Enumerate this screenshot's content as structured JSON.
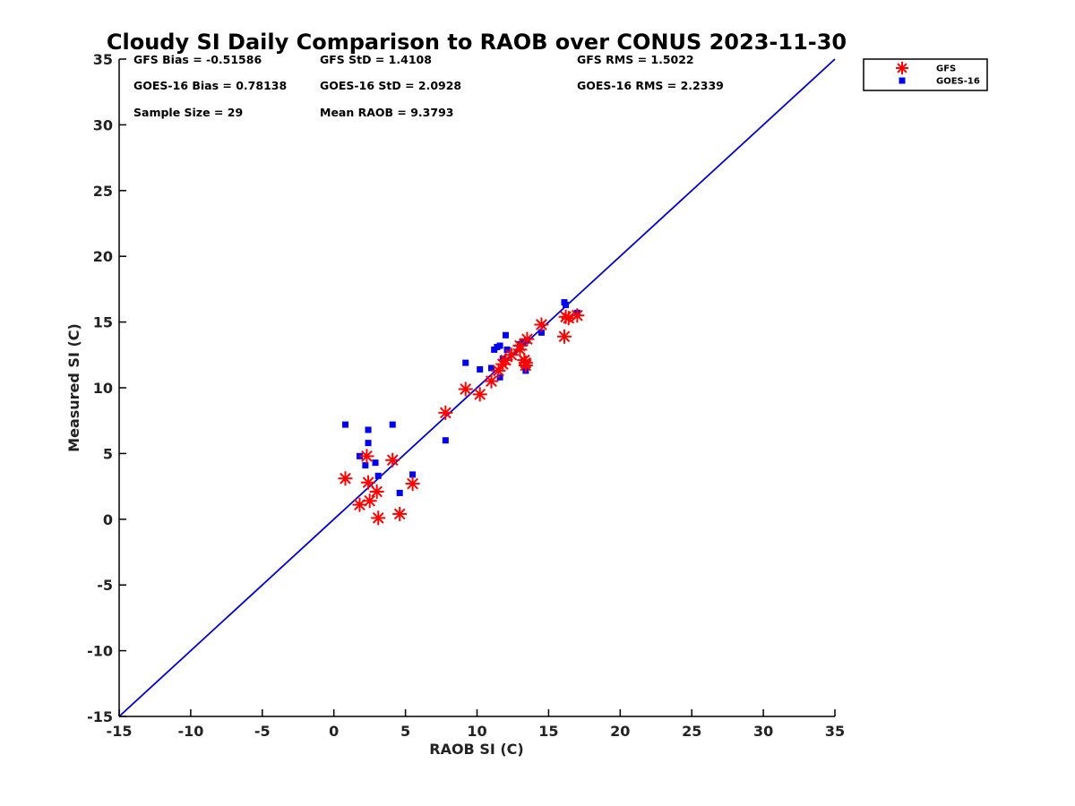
{
  "chart_data": {
    "type": "scatter",
    "title": "Cloudy SI Daily Comparison to RAOB over CONUS 2023-11-30",
    "xlabel": "RAOB SI (C)",
    "ylabel": "Measured SI (C)",
    "xlim": [
      -15,
      35
    ],
    "ylim": [
      -15,
      35
    ],
    "xticks": [
      -15,
      -10,
      -5,
      0,
      5,
      10,
      15,
      20,
      25,
      30,
      35
    ],
    "yticks": [
      -15,
      -10,
      -5,
      0,
      5,
      10,
      15,
      20,
      25,
      30,
      35
    ],
    "grid": false,
    "legend_position": "outside-top-right",
    "reference_line": {
      "x": [
        -15,
        35
      ],
      "y": [
        -15,
        35
      ],
      "color": "#0000cc"
    },
    "stats": [
      [
        "GFS Bias = -0.51586",
        "GFS StD = 1.4108",
        "GFS RMS = 1.5022"
      ],
      [
        "GOES-16 Bias = 0.78138",
        "GOES-16 StD = 2.0928",
        "GOES-16 RMS = 2.2339"
      ],
      [
        "Sample Size = 29",
        "Mean RAOB = 9.3793",
        ""
      ]
    ],
    "series": [
      {
        "name": "GFS",
        "marker": "asterisk",
        "color": "#ff0000",
        "x": [
          0.8,
          1.8,
          2.3,
          2.4,
          2.5,
          3.0,
          3.1,
          4.1,
          4.6,
          5.5,
          7.8,
          9.2,
          10.2,
          11.0,
          11.5,
          11.8,
          12.0,
          12.4,
          13.0,
          13.3,
          13.4,
          13.5,
          14.5,
          16.1,
          16.2,
          16.4,
          17.0,
          13.0,
          13.4
        ],
        "y": [
          3.1,
          1.1,
          4.8,
          2.8,
          1.4,
          2.1,
          0.1,
          4.5,
          0.4,
          2.7,
          8.1,
          9.9,
          9.5,
          10.5,
          11.3,
          11.8,
          12.1,
          12.5,
          13.2,
          12.1,
          11.7,
          13.7,
          14.8,
          13.9,
          15.4,
          15.3,
          15.5,
          12.9,
          11.9
        ]
      },
      {
        "name": "GOES-16",
        "marker": "square",
        "color": "#0000ee",
        "x": [
          0.8,
          1.8,
          2.2,
          2.4,
          2.4,
          2.9,
          3.1,
          4.1,
          4.6,
          5.5,
          7.8,
          9.2,
          10.2,
          11.0,
          11.2,
          11.4,
          11.6,
          11.6,
          12.0,
          12.1,
          13.0,
          13.2,
          13.4,
          14.5,
          16.1,
          16.2,
          17.0,
          11.8,
          13.5
        ],
        "y": [
          7.2,
          4.8,
          4.1,
          6.8,
          5.8,
          4.3,
          3.3,
          7.2,
          2.0,
          3.4,
          6.0,
          11.9,
          11.4,
          11.5,
          12.9,
          13.1,
          13.2,
          10.8,
          14.0,
          12.9,
          13.3,
          13.4,
          11.3,
          14.2,
          16.5,
          16.3,
          15.7,
          12.2,
          13.6
        ]
      }
    ]
  }
}
